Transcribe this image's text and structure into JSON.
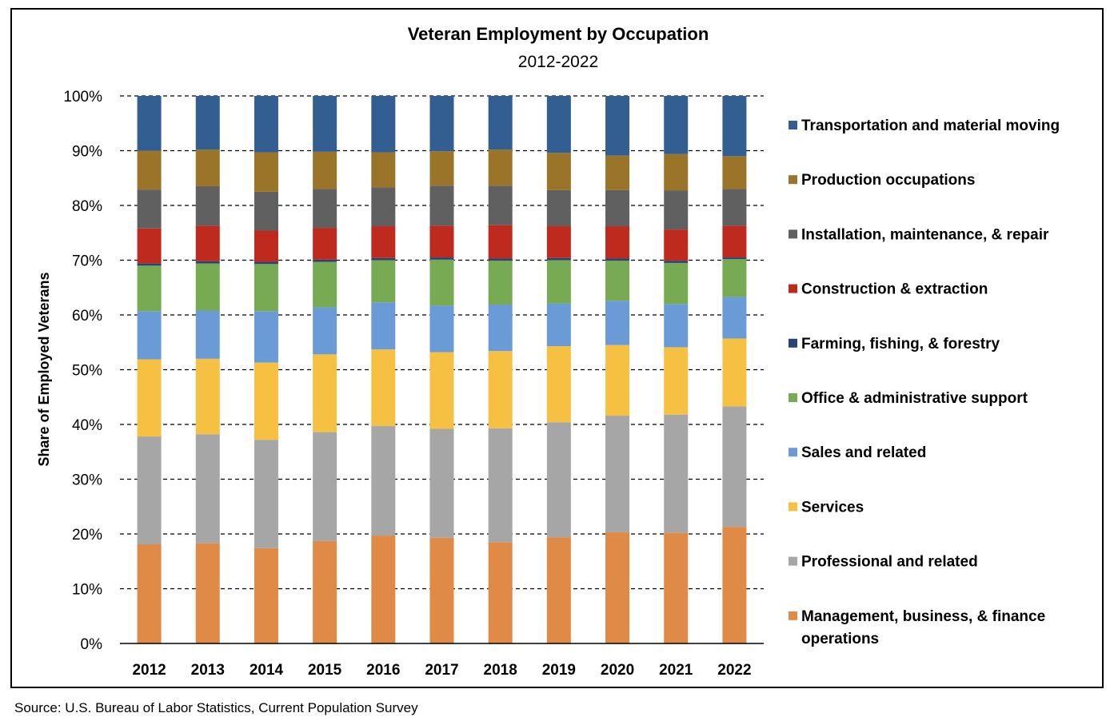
{
  "chart_data": {
    "type": "bar",
    "stacked": true,
    "title": "Veteran Employment by Occupation",
    "subtitle": "2012-2022",
    "ylabel": "Share of Employed Veterans",
    "xlabel": "",
    "ylim": [
      0,
      100
    ],
    "yticks": [
      "0%",
      "10%",
      "20%",
      "30%",
      "40%",
      "50%",
      "60%",
      "70%",
      "80%",
      "90%",
      "100%"
    ],
    "categories": [
      "2012",
      "2013",
      "2014",
      "2015",
      "2016",
      "2017",
      "2018",
      "2019",
      "2020",
      "2021",
      "2022"
    ],
    "grid": "horizontal dashed",
    "legend_position": "right",
    "series": [
      {
        "name": "Management, business, & finance operations",
        "color": "#E08A47",
        "values": [
          18.1,
          18.3,
          17.4,
          18.7,
          19.7,
          19.3,
          18.5,
          19.4,
          20.3,
          20.2,
          21.3
        ]
      },
      {
        "name": "Professional and related",
        "color": "#A6A6A6",
        "values": [
          19.7,
          19.9,
          19.8,
          19.9,
          20.0,
          19.9,
          20.8,
          21.0,
          21.3,
          21.6,
          22.0
        ]
      },
      {
        "name": "Services",
        "color": "#F6C142",
        "values": [
          14.1,
          13.8,
          14.1,
          14.2,
          14.0,
          14.0,
          14.1,
          13.9,
          12.9,
          12.3,
          12.4
        ]
      },
      {
        "name": "Sales and related",
        "color": "#6A9BD6",
        "values": [
          8.8,
          8.8,
          9.4,
          8.6,
          8.6,
          8.5,
          8.5,
          7.8,
          8.1,
          7.9,
          7.6
        ]
      },
      {
        "name": "Office & administrative support",
        "color": "#77AA52",
        "values": [
          8.3,
          8.6,
          8.6,
          8.3,
          7.7,
          8.4,
          8.0,
          7.9,
          7.3,
          7.5,
          6.9
        ]
      },
      {
        "name": "Farming, fishing, & forestry",
        "color": "#264478",
        "values": [
          0.4,
          0.4,
          0.4,
          0.4,
          0.4,
          0.4,
          0.4,
          0.4,
          0.4,
          0.4,
          0.3
        ]
      },
      {
        "name": "Construction & extraction",
        "color": "#BE2A1E",
        "values": [
          6.4,
          6.5,
          5.7,
          5.8,
          5.8,
          5.8,
          6.1,
          5.8,
          5.9,
          5.7,
          5.8
        ]
      },
      {
        "name": "Installation, maintenance, & repair",
        "color": "#606060",
        "values": [
          7.1,
          7.2,
          7.1,
          7.1,
          7.1,
          7.3,
          7.2,
          6.6,
          6.6,
          7.1,
          6.7
        ]
      },
      {
        "name": "Production occupations",
        "color": "#9A7428",
        "values": [
          7.1,
          6.7,
          7.2,
          6.8,
          6.4,
          6.3,
          6.6,
          6.8,
          6.3,
          6.7,
          6.0
        ]
      },
      {
        "name": "Transportation and material moving",
        "color": "#335E91",
        "values": [
          10.0,
          9.8,
          10.3,
          10.2,
          10.3,
          10.1,
          9.8,
          10.4,
          10.9,
          10.6,
          11.0
        ]
      }
    ]
  },
  "legend_order": [
    9,
    8,
    7,
    6,
    5,
    4,
    3,
    2,
    1,
    0
  ],
  "legend_lines": {
    "0": [
      "Management, business, & finance",
      "operations"
    ]
  },
  "source_note": "Source: U.S. Bureau of Labor Statistics, Current Population Survey"
}
